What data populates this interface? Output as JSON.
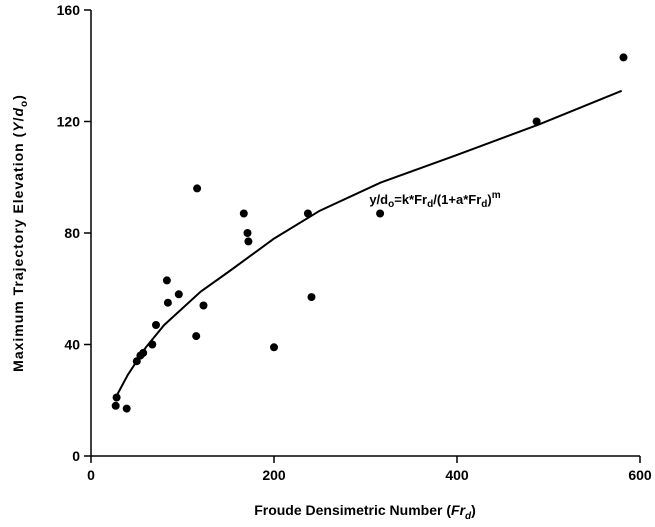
{
  "chart_data": {
    "type": "scatter",
    "title": "",
    "xlabel": {
      "main": "Froude Densimetric Number (",
      "var": "Fr",
      "sub": "d",
      "close": ")"
    },
    "ylabel": {
      "main": "Maximum Trajectory Elevation (",
      "var1": "Y",
      "slash": "/",
      "var2": "d",
      "sub": "o",
      "close": ")"
    },
    "xlim": [
      0,
      600
    ],
    "ylim": [
      0,
      160
    ],
    "xticks": [
      0,
      200,
      400,
      600
    ],
    "yticks": [
      0,
      40,
      80,
      120,
      160
    ],
    "grid": false,
    "legend": "none",
    "color": "#000000",
    "equation": {
      "p1": "y/d",
      "s1": "o",
      "p2": "=k*Fr",
      "s2": "d",
      "p3": "/(1+a*Fr",
      "s3": "d",
      "p4": ")",
      "sup": "m"
    },
    "series": [
      {
        "points": [
          {
            "x": 27,
            "y": 18
          },
          {
            "x": 28,
            "y": 21
          },
          {
            "x": 39,
            "y": 17
          },
          {
            "x": 50,
            "y": 34
          },
          {
            "x": 54,
            "y": 36
          },
          {
            "x": 57,
            "y": 37
          },
          {
            "x": 67,
            "y": 40
          },
          {
            "x": 71,
            "y": 47
          },
          {
            "x": 83,
            "y": 63
          },
          {
            "x": 84,
            "y": 55
          },
          {
            "x": 96,
            "y": 58
          },
          {
            "x": 115,
            "y": 43
          },
          {
            "x": 116,
            "y": 96
          },
          {
            "x": 123,
            "y": 54
          },
          {
            "x": 167,
            "y": 87
          },
          {
            "x": 171,
            "y": 80
          },
          {
            "x": 172,
            "y": 77
          },
          {
            "x": 200,
            "y": 39
          },
          {
            "x": 237,
            "y": 87
          },
          {
            "x": 241,
            "y": 57
          },
          {
            "x": 316,
            "y": 87
          },
          {
            "x": 487,
            "y": 120
          },
          {
            "x": 582,
            "y": 143
          }
        ]
      },
      {
        "fit_curve": [
          {
            "x": 27,
            "y": 21
          },
          {
            "x": 40,
            "y": 29
          },
          {
            "x": 60,
            "y": 39
          },
          {
            "x": 80,
            "y": 47
          },
          {
            "x": 100,
            "y": 53
          },
          {
            "x": 120,
            "y": 59
          },
          {
            "x": 150,
            "y": 66
          },
          {
            "x": 200,
            "y": 78
          },
          {
            "x": 250,
            "y": 88
          },
          {
            "x": 316,
            "y": 98
          },
          {
            "x": 400,
            "y": 108
          },
          {
            "x": 490,
            "y": 119
          },
          {
            "x": 580,
            "y": 131
          }
        ]
      }
    ]
  }
}
